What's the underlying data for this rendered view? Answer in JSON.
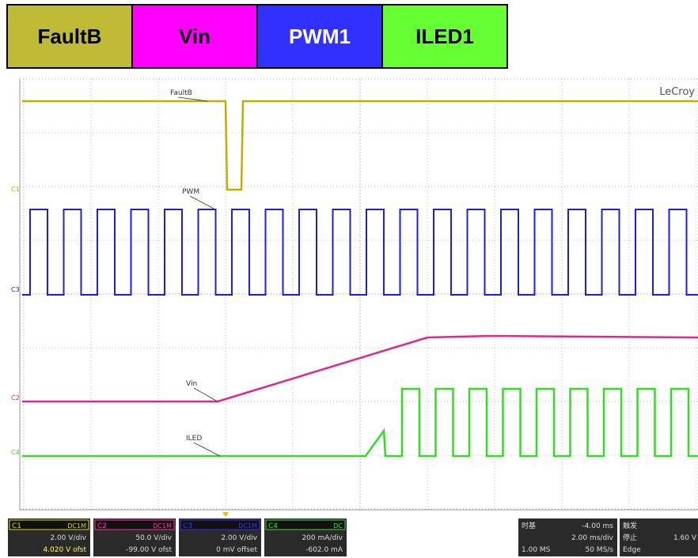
{
  "legend": [
    "FaultB",
    "Vin",
    "PWM1",
    "ILED1"
  ],
  "brand": "LeCroy",
  "trace_labels": {
    "faultb": "FaultB",
    "pwm": "PWM",
    "vin": "Vin",
    "iled": "ILED"
  },
  "channel_markers": [
    "C1",
    "C3",
    "C2",
    "C4"
  ],
  "channels": [
    {
      "name": "C1",
      "coupling": "DC1M",
      "scale": "2.00 V/div",
      "offset": "4.020 V ofst"
    },
    {
      "name": "C2",
      "coupling": "DC1M",
      "scale": "50.0 V/div",
      "offset": "-99.00 V ofst"
    },
    {
      "name": "C3",
      "coupling": "DC1M",
      "scale": "2.00 V/div",
      "offset": "0 mV offset"
    },
    {
      "name": "C4",
      "coupling": "DC",
      "scale": "200 mA/div",
      "offset": "-602.0 mA"
    }
  ],
  "timebase": {
    "label": "时基",
    "delay": "-4.00 ms",
    "scale": "2.00 ms/div",
    "points": "1.00 MS",
    "rate": "50 MS/s"
  },
  "trigger": {
    "label": "触发",
    "state": "停止",
    "level": "1.60 V",
    "mode": "Edge"
  }
}
